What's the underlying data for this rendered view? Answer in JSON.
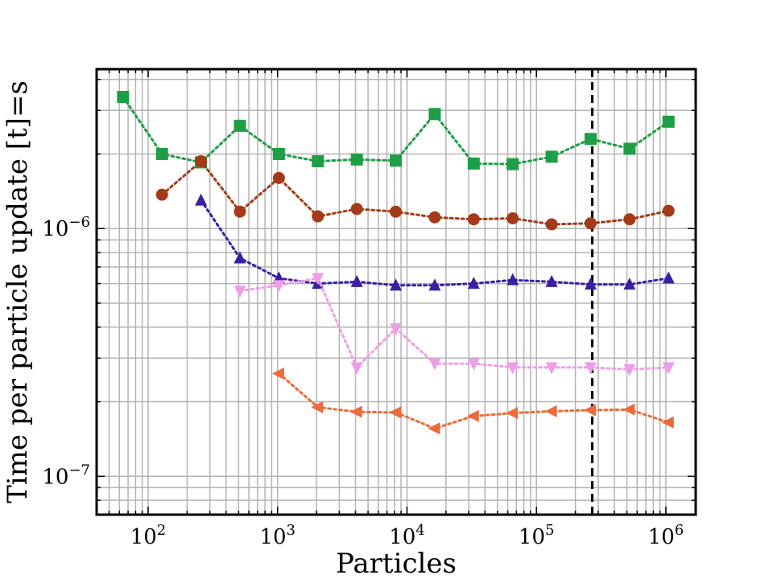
{
  "chart_data": {
    "type": "line",
    "xscale": "log",
    "yscale": "log",
    "xlabel": "Particles",
    "ylabel": "Time per particle update [t]=s",
    "xlim": [
      40,
      1700000
    ],
    "ylim": [
      7e-08,
      4.4e-06
    ],
    "grid": true,
    "x_ticks": [
      {
        "value": 100,
        "base": "10",
        "exp": "2"
      },
      {
        "value": 1000,
        "base": "10",
        "exp": "3"
      },
      {
        "value": 10000,
        "base": "10",
        "exp": "4"
      },
      {
        "value": 100000,
        "base": "10",
        "exp": "5"
      },
      {
        "value": 1000000,
        "base": "10",
        "exp": "6"
      }
    ],
    "y_ticks": [
      {
        "value": 1e-07,
        "base": "10",
        "exp": "−7"
      },
      {
        "value": 1e-06,
        "base": "10",
        "exp": "−6"
      }
    ],
    "vline": {
      "x": 270000,
      "style": "dashed",
      "color": "#000000"
    },
    "series": [
      {
        "name": "green-square",
        "marker": "square",
        "color": "#1e9e46",
        "x": [
          64,
          128,
          256,
          512,
          1024,
          2048,
          4096,
          8192,
          16384,
          32768,
          65536,
          131072,
          262144,
          524288,
          1048576
        ],
        "y": [
          3.4e-06,
          2e-06,
          1.85e-06,
          2.6e-06,
          2e-06,
          1.87e-06,
          1.9e-06,
          1.88e-06,
          2.9e-06,
          1.83e-06,
          1.82e-06,
          1.95e-06,
          2.3e-06,
          2.1e-06,
          2.7e-06
        ]
      },
      {
        "name": "brown-circle",
        "marker": "circle",
        "color": "#a33a18",
        "x": [
          128,
          256,
          512,
          1024,
          2048,
          4096,
          8192,
          16384,
          32768,
          65536,
          131072,
          262144,
          524288,
          1048576
        ],
        "y": [
          1.37e-06,
          1.87e-06,
          1.17e-06,
          1.6e-06,
          1.12e-06,
          1.2e-06,
          1.17e-06,
          1.11e-06,
          1.09e-06,
          1.1e-06,
          1.04e-06,
          1.05e-06,
          1.09e-06,
          1.18e-06
        ]
      },
      {
        "name": "indigo-triangle-up",
        "marker": "triangle-up",
        "color": "#3a1fa0",
        "x": [
          256,
          512,
          1024,
          2048,
          4096,
          8192,
          16384,
          32768,
          65536,
          131072,
          262144,
          524288,
          1048576
        ],
        "y": [
          1.3e-06,
          7.6e-07,
          6.3e-07,
          6e-07,
          6.1e-07,
          5.9e-07,
          5.9e-07,
          6e-07,
          6.2e-07,
          6.1e-07,
          5.95e-07,
          5.95e-07,
          6.3e-07
        ]
      },
      {
        "name": "pink-triangle-down",
        "marker": "triangle-down",
        "color": "#ee9ee8",
        "x": [
          512,
          1024,
          2048,
          4096,
          8192,
          16384,
          32768,
          65536,
          131072,
          262144,
          524288,
          1048576
        ],
        "y": [
          5.6e-07,
          5.9e-07,
          6.3e-07,
          2.75e-07,
          3.95e-07,
          2.85e-07,
          2.85e-07,
          2.75e-07,
          2.75e-07,
          2.75e-07,
          2.7e-07,
          2.75e-07
        ]
      },
      {
        "name": "orange-triangle-left",
        "marker": "triangle-left",
        "color": "#ee6a3a",
        "x": [
          1024,
          2048,
          4096,
          8192,
          16384,
          32768,
          65536,
          131072,
          262144,
          524288,
          1048576
        ],
        "y": [
          2.6e-07,
          1.9e-07,
          1.82e-07,
          1.81e-07,
          1.56e-07,
          1.75e-07,
          1.8e-07,
          1.83e-07,
          1.85e-07,
          1.86e-07,
          1.65e-07
        ]
      }
    ]
  }
}
